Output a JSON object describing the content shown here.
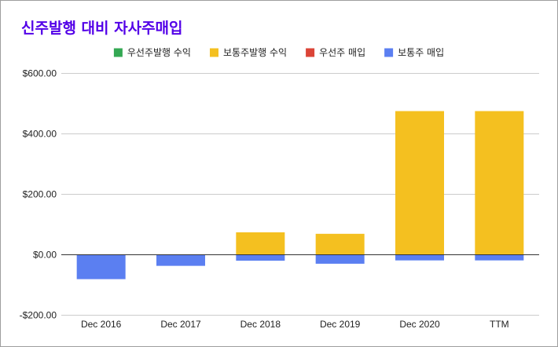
{
  "chart_data": {
    "type": "bar",
    "stacked": true,
    "title": "신주발행 대비 자사주매입",
    "xlabel": "",
    "ylabel": "",
    "categories": [
      "Dec 2016",
      "Dec 2017",
      "Dec 2018",
      "Dec 2019",
      "Dec 2020",
      "TTM"
    ],
    "ylim": [
      -200,
      600
    ],
    "yticks": [
      600,
      400,
      200,
      0,
      -200
    ],
    "ytick_labels": [
      "$600.00",
      "$400.00",
      "$200.00",
      "$0.00",
      "-$200.00"
    ],
    "grid": true,
    "legend_position": "top",
    "series": [
      {
        "name": "우선주발행 수익",
        "color": "#34a853",
        "values": [
          0,
          0,
          0,
          0,
          0,
          0
        ]
      },
      {
        "name": "보통주발행 수익",
        "color": "#f4c020",
        "values": [
          0,
          0,
          73,
          68,
          474,
          474
        ]
      },
      {
        "name": "우선주 매입",
        "color": "#db4437",
        "values": [
          0,
          0,
          0,
          0,
          0,
          0
        ]
      },
      {
        "name": "보통주 매입",
        "color": "#5b7ff1",
        "values": [
          -82,
          -38,
          -21,
          -31,
          -20,
          -20
        ]
      }
    ]
  }
}
